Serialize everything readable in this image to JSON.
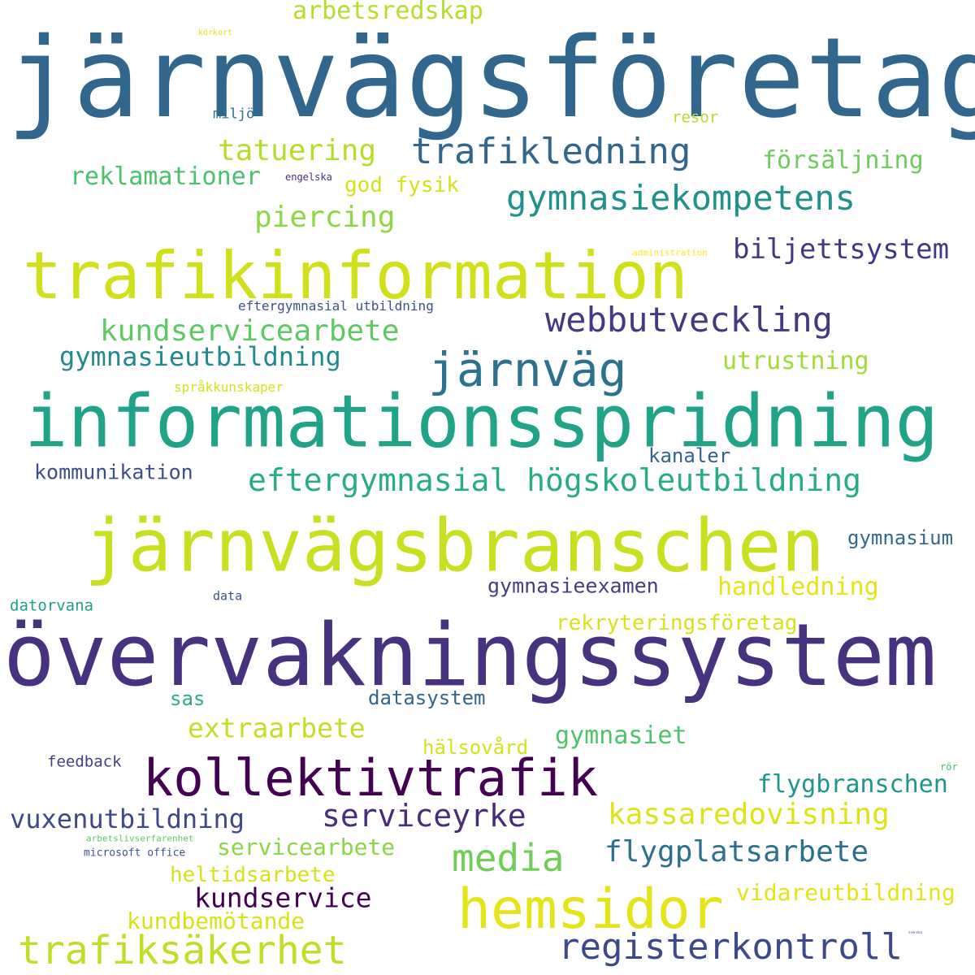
{
  "words": [
    {
      "text": "järnvägsföretag",
      "color": "#31668d"
    },
    {
      "text": "arbetsredskap",
      "color": "#b5dd2b"
    },
    {
      "text": "körkort",
      "color": "#dfe318"
    },
    {
      "text": "miljö",
      "color": "#2c718e"
    },
    {
      "text": "resor",
      "color": "#b5dd2b"
    },
    {
      "text": "tatuering",
      "color": "#b5dd2b"
    },
    {
      "text": "trafikledning",
      "color": "#31668d"
    },
    {
      "text": "försäljning",
      "color": "#6ccd5a"
    },
    {
      "text": "reklamationer",
      "color": "#4ac16d"
    },
    {
      "text": "engelska",
      "color": "#472f7d"
    },
    {
      "text": "god fysik",
      "color": "#d5e21a"
    },
    {
      "text": "gymnasiekompetens",
      "color": "#21918c"
    },
    {
      "text": "piercing",
      "color": "#8ed645"
    },
    {
      "text": "biljettsystem",
      "color": "#3e3a85"
    },
    {
      "text": "trafikinformation",
      "color": "#d0e11c"
    },
    {
      "text": "administration",
      "color": "#fde725"
    },
    {
      "text": "eftergymnasial utbildning",
      "color": "#3b528b"
    },
    {
      "text": "webbutveckling",
      "color": "#443983"
    },
    {
      "text": "kundservicearbete",
      "color": "#5ec962"
    },
    {
      "text": "järnväg",
      "color": "#2c728e"
    },
    {
      "text": "gymnasieutbildning",
      "color": "#23888e"
    },
    {
      "text": "utrustning",
      "color": "#a2da37"
    },
    {
      "text": "språkkunskaper",
      "color": "#d8e219"
    },
    {
      "text": "informationsspridning",
      "color": "#20a386"
    },
    {
      "text": "kanaler",
      "color": "#33638d"
    },
    {
      "text": "kommunikation",
      "color": "#3d4e8a"
    },
    {
      "text": "eftergymnasial högskoleutbildning",
      "color": "#27ad81"
    },
    {
      "text": "järnvägsbranschen",
      "color": "#c8e020"
    },
    {
      "text": "gymnasium",
      "color": "#31688e"
    },
    {
      "text": "gymnasieexamen",
      "color": "#433e85"
    },
    {
      "text": "handledning",
      "color": "#e5e419"
    },
    {
      "text": "datorvana",
      "color": "#1f9e89"
    },
    {
      "text": "data",
      "color": "#3b528b"
    },
    {
      "text": "rekryteringsföretag",
      "color": "#d8e219"
    },
    {
      "text": "övervakningssystem",
      "color": "#46327e"
    },
    {
      "text": "sas",
      "color": "#29af7f"
    },
    {
      "text": "datasystem",
      "color": "#31668d"
    },
    {
      "text": "extraarbete",
      "color": "#c2df23"
    },
    {
      "text": "gymnasiet",
      "color": "#4ec36b"
    },
    {
      "text": "hälsovård",
      "color": "#d5e21a"
    },
    {
      "text": "feedback",
      "color": "#424186"
    },
    {
      "text": "kollektivtrafik",
      "color": "#440154"
    },
    {
      "text": "rör",
      "color": "#4ac16d"
    },
    {
      "text": "flygbranschen",
      "color": "#1f968b"
    },
    {
      "text": "vuxenutbildning",
      "color": "#3f4889"
    },
    {
      "text": "serviceyrke",
      "color": "#472d7b"
    },
    {
      "text": "kassaredovisning",
      "color": "#dde318"
    },
    {
      "text": "arbetslivserfarenhet",
      "color": "#5ec962"
    },
    {
      "text": "servicearbete",
      "color": "#8bd646"
    },
    {
      "text": "media",
      "color": "#6ece58"
    },
    {
      "text": "flygplatsarbete",
      "color": "#2d708e"
    },
    {
      "text": "microsoft office",
      "color": "#3b528b"
    },
    {
      "text": "heltidsarbete",
      "color": "#d8e219"
    },
    {
      "text": "kundservice",
      "color": "#440154"
    },
    {
      "text": "hemsidor",
      "color": "#e5e419"
    },
    {
      "text": "vidareutbildning",
      "color": "#e5e419"
    },
    {
      "text": "kundbemötande",
      "color": "#d8e219"
    },
    {
      "text": "svenska",
      "color": "#3b528b"
    },
    {
      "text": "trafiksäkerhet",
      "color": "#bddf26"
    },
    {
      "text": "registerkontroll",
      "color": "#3e4989"
    }
  ]
}
